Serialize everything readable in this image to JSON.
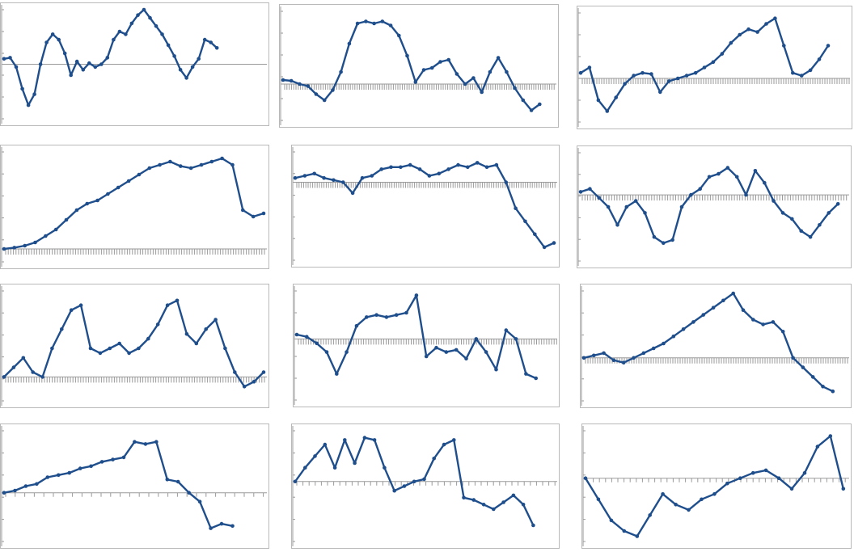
{
  "figure": {
    "line_color": "#1f4e8c",
    "axis_color": "#9a9a9a",
    "border_color": "#b9b9b9",
    "background": "#ffffff"
  },
  "chart_data": [
    {
      "type": "line",
      "title": "",
      "xlabel": "",
      "ylabel": "",
      "ylim": [
        -1,
        1
      ],
      "grid": false,
      "legend": "none",
      "x_range": [
        0,
        130
      ],
      "series": [
        {
          "values": [
            0.1,
            0.12,
            -0.05,
            -0.45,
            -0.75,
            -0.55,
            0.0,
            0.4,
            0.55,
            0.45,
            0.2,
            -0.2,
            0.05,
            -0.1,
            0.02,
            -0.05,
            0.0,
            0.12,
            0.45,
            0.6,
            0.55,
            0.75,
            0.9,
            1.0,
            0.85,
            0.7,
            0.55,
            0.35,
            0.15,
            -0.1,
            -0.25,
            -0.05,
            0.1,
            0.45,
            0.4,
            0.3
          ]
        }
      ]
    },
    {
      "type": "line",
      "title": "",
      "xlabel": "",
      "ylabel": "",
      "ylim": [
        -0.9,
        1.8
      ],
      "grid": false,
      "legend": "none",
      "x_range": [
        0,
        130
      ],
      "series": [
        {
          "values": [
            0.1,
            0.08,
            0.0,
            -0.05,
            -0.25,
            -0.4,
            -0.15,
            0.3,
            1.0,
            1.5,
            1.55,
            1.5,
            1.55,
            1.45,
            1.2,
            0.7,
            0.05,
            0.35,
            0.4,
            0.55,
            0.6,
            0.25,
            0.0,
            0.15,
            -0.2,
            0.3,
            0.65,
            0.3,
            -0.1,
            -0.4,
            -0.65,
            -0.5
          ]
        }
      ]
    },
    {
      "type": "line",
      "title": "",
      "xlabel": "",
      "ylabel": "",
      "ylim": [
        -0.8,
        1.2
      ],
      "grid": false,
      "legend": "none",
      "x_range": [
        0,
        130
      ],
      "series": [
        {
          "values": [
            0.1,
            0.2,
            -0.4,
            -0.6,
            -0.35,
            -0.1,
            0.05,
            0.1,
            0.08,
            -0.25,
            -0.05,
            0.0,
            0.05,
            0.1,
            0.2,
            0.3,
            0.45,
            0.65,
            0.8,
            0.9,
            0.85,
            1.0,
            1.1,
            0.6,
            0.1,
            0.05,
            0.15,
            0.35,
            0.6
          ]
        }
      ]
    },
    {
      "type": "line",
      "title": "",
      "xlabel": "",
      "ylabel": "",
      "ylim": [
        -0.2,
        1.5
      ],
      "grid": false,
      "legend": "none",
      "x_range": [
        0,
        130
      ],
      "series": [
        {
          "values": [
            0.0,
            0.02,
            0.05,
            0.1,
            0.2,
            0.3,
            0.45,
            0.6,
            0.7,
            0.75,
            0.85,
            0.95,
            1.05,
            1.15,
            1.25,
            1.3,
            1.35,
            1.28,
            1.25,
            1.3,
            1.35,
            1.4,
            1.3,
            0.6,
            0.5,
            0.55
          ]
        }
      ]
    },
    {
      "type": "line",
      "title": "",
      "xlabel": "",
      "ylabel": "",
      "ylim": [
        -1.8,
        0.7
      ],
      "grid": false,
      "legend": "none",
      "x_range": [
        0,
        130
      ],
      "series": [
        {
          "values": [
            0.1,
            0.15,
            0.2,
            0.1,
            0.05,
            0.0,
            -0.25,
            0.1,
            0.15,
            0.3,
            0.35,
            0.35,
            0.4,
            0.3,
            0.15,
            0.2,
            0.3,
            0.4,
            0.35,
            0.45,
            0.35,
            0.4,
            0.0,
            -0.6,
            -0.9,
            -1.2,
            -1.5,
            -1.4
          ]
        }
      ]
    },
    {
      "type": "line",
      "title": "",
      "xlabel": "",
      "ylabel": "",
      "ylim": [
        -1.1,
        0.7
      ],
      "grid": false,
      "legend": "none",
      "x_range": [
        0,
        130
      ],
      "series": [
        {
          "values": [
            0.05,
            0.1,
            -0.05,
            -0.2,
            -0.5,
            -0.2,
            -0.1,
            -0.3,
            -0.7,
            -0.8,
            -0.75,
            -0.2,
            0.0,
            0.1,
            0.3,
            0.35,
            0.45,
            0.3,
            0.0,
            0.4,
            0.2,
            -0.1,
            -0.3,
            -0.4,
            -0.6,
            -0.7,
            -0.5,
            -0.3,
            -0.15
          ]
        }
      ]
    },
    {
      "type": "line",
      "title": "",
      "xlabel": "",
      "ylabel": "",
      "ylim": [
        -0.25,
        0.9
      ],
      "grid": false,
      "legend": "none",
      "x_range": [
        0,
        130
      ],
      "series": [
        {
          "values": [
            0.0,
            0.1,
            0.2,
            0.05,
            0.0,
            0.3,
            0.5,
            0.7,
            0.75,
            0.3,
            0.25,
            0.3,
            0.35,
            0.25,
            0.3,
            0.4,
            0.55,
            0.75,
            0.8,
            0.45,
            0.35,
            0.5,
            0.6,
            0.3,
            0.05,
            -0.1,
            -0.05,
            0.05
          ]
        }
      ]
    },
    {
      "type": "line",
      "title": "",
      "xlabel": "",
      "ylabel": "",
      "ylim": [
        -1.4,
        1.1
      ],
      "grid": false,
      "legend": "none",
      "x_range": [
        0,
        130
      ],
      "series": [
        {
          "values": [
            0.1,
            0.05,
            -0.1,
            -0.3,
            -0.8,
            -0.3,
            0.3,
            0.5,
            0.55,
            0.5,
            0.55,
            0.6,
            1.0,
            -0.4,
            -0.2,
            -0.3,
            -0.25,
            -0.45,
            0.0,
            -0.3,
            -0.7,
            0.2,
            0.0,
            -0.8,
            -0.9
          ]
        }
      ]
    },
    {
      "type": "line",
      "title": "",
      "xlabel": "",
      "ylabel": "",
      "ylim": [
        -0.9,
        1.4
      ],
      "grid": false,
      "legend": "none",
      "x_range": [
        0,
        130
      ],
      "series": [
        {
          "values": [
            0.0,
            0.05,
            0.1,
            -0.05,
            -0.1,
            0.0,
            0.1,
            0.2,
            0.3,
            0.45,
            0.6,
            0.75,
            0.9,
            1.05,
            1.2,
            1.35,
            1.0,
            0.8,
            0.7,
            0.75,
            0.55,
            0.0,
            -0.2,
            -0.4,
            -0.6,
            -0.7
          ]
        }
      ]
    },
    {
      "type": "line",
      "title": "",
      "xlabel": "",
      "ylabel": "",
      "ylim": [
        -1.1,
        1.4
      ],
      "grid": false,
      "legend": "none",
      "x_range": [
        0,
        28
      ],
      "series": [
        {
          "values": [
            0.0,
            0.05,
            0.15,
            0.2,
            0.35,
            0.4,
            0.45,
            0.55,
            0.6,
            0.7,
            0.75,
            0.8,
            1.15,
            1.1,
            1.15,
            0.3,
            0.25,
            0.0,
            -0.2,
            -0.8,
            -0.7,
            -0.75
          ]
        }
      ]
    },
    {
      "type": "line",
      "title": "",
      "xlabel": "",
      "ylabel": "",
      "ylim": [
        -1.3,
        1.1
      ],
      "grid": false,
      "legend": "none",
      "x_range": [
        0,
        44
      ],
      "series": [
        {
          "values": [
            0.0,
            0.3,
            0.55,
            0.8,
            0.3,
            0.9,
            0.4,
            0.95,
            0.9,
            0.3,
            -0.2,
            -0.1,
            0.0,
            0.05,
            0.5,
            0.8,
            0.9,
            -0.35,
            -0.4,
            -0.5,
            -0.6,
            -0.45,
            -0.3,
            -0.5,
            -0.95
          ]
        }
      ]
    },
    {
      "type": "line",
      "title": "",
      "xlabel": "",
      "ylabel": "",
      "ylim": [
        -1.2,
        0.9
      ],
      "grid": false,
      "legend": "none",
      "x_range": [
        0,
        44
      ],
      "series": [
        {
          "values": [
            0.0,
            -0.4,
            -0.8,
            -1.0,
            -1.1,
            -0.7,
            -0.3,
            -0.5,
            -0.6,
            -0.4,
            -0.3,
            -0.1,
            0.0,
            0.1,
            0.15,
            0.0,
            -0.2,
            0.1,
            0.6,
            0.8,
            -0.2
          ]
        }
      ]
    }
  ]
}
